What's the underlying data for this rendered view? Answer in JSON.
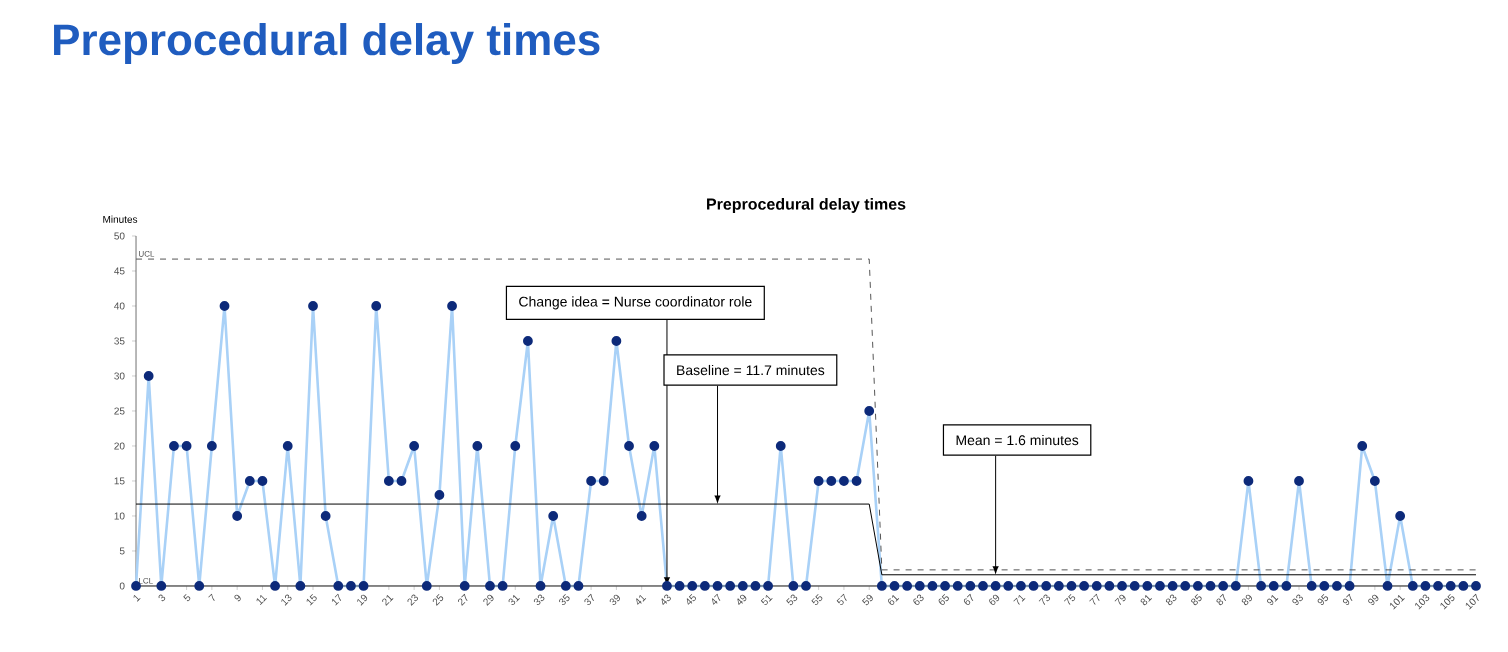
{
  "chart_data": {
    "type": "line",
    "title": "Preprocedural delay times",
    "subtitle": "Preprocedural delay times",
    "ylabel": "Minutes",
    "x": [
      1,
      2,
      3,
      4,
      5,
      6,
      7,
      8,
      9,
      10,
      11,
      12,
      13,
      14,
      15,
      16,
      17,
      18,
      19,
      20,
      21,
      22,
      23,
      24,
      25,
      26,
      27,
      28,
      29,
      30,
      31,
      32,
      33,
      34,
      35,
      36,
      37,
      38,
      39,
      40,
      41,
      42,
      43,
      44,
      45,
      46,
      47,
      48,
      49,
      50,
      51,
      52,
      53,
      54,
      55,
      56,
      57,
      58,
      59,
      60,
      61,
      62,
      63,
      64,
      65,
      66,
      67,
      68,
      69,
      70,
      71,
      72,
      73,
      74,
      75,
      76,
      77,
      78,
      79,
      80,
      81,
      82,
      83,
      84,
      85,
      86,
      87,
      88,
      89,
      90,
      91,
      92,
      93,
      94,
      95,
      96,
      97,
      98,
      99,
      100,
      101,
      102,
      103,
      104,
      105,
      106,
      107
    ],
    "series": [
      {
        "color": "#a9d1f7",
        "marker": "circle",
        "line_style": "solid",
        "values": [
          0,
          30,
          0,
          20,
          20,
          0,
          20,
          40,
          10,
          15,
          15,
          0,
          20,
          0,
          40,
          10,
          0,
          0,
          0,
          40,
          15,
          15,
          20,
          0,
          13,
          40,
          0,
          20,
          0,
          0,
          20,
          35,
          0,
          10,
          0,
          0,
          15,
          15,
          35,
          20,
          10,
          20,
          0,
          0,
          0,
          0,
          0,
          0,
          0,
          0,
          0,
          20,
          0,
          0,
          15,
          15,
          15,
          15,
          25,
          0,
          0,
          0,
          0,
          0,
          0,
          0,
          0,
          0,
          0,
          0,
          0,
          0,
          0,
          0,
          0,
          0,
          0,
          0,
          0,
          0,
          0,
          0,
          0,
          0,
          0,
          0,
          0,
          0,
          15,
          0,
          0,
          0,
          15,
          0,
          0,
          0,
          0,
          20,
          15,
          0,
          10,
          0,
          0,
          0,
          0,
          0,
          0
        ]
      },
      {
        "color": "#000000",
        "marker": "none",
        "line_style": "solid",
        "values": [
          11.7,
          11.7,
          11.7,
          11.7,
          11.7,
          11.7,
          11.7,
          11.7,
          11.7,
          11.7,
          11.7,
          11.7,
          11.7,
          11.7,
          11.7,
          11.7,
          11.7,
          11.7,
          11.7,
          11.7,
          11.7,
          11.7,
          11.7,
          11.7,
          11.7,
          11.7,
          11.7,
          11.7,
          11.7,
          11.7,
          11.7,
          11.7,
          11.7,
          11.7,
          11.7,
          11.7,
          11.7,
          11.7,
          11.7,
          11.7,
          11.7,
          11.7,
          11.7,
          11.7,
          11.7,
          11.7,
          11.7,
          11.7,
          11.7,
          11.7,
          11.7,
          11.7,
          11.7,
          11.7,
          11.7,
          11.7,
          11.7,
          11.7,
          11.7,
          1.6,
          1.6,
          1.6,
          1.6,
          1.6,
          1.6,
          1.6,
          1.6,
          1.6,
          1.6,
          1.6,
          1.6,
          1.6,
          1.6,
          1.6,
          1.6,
          1.6,
          1.6,
          1.6,
          1.6,
          1.6,
          1.6,
          1.6,
          1.6,
          1.6,
          1.6,
          1.6,
          1.6,
          1.6,
          1.6,
          1.6,
          1.6,
          1.6,
          1.6,
          1.6,
          1.6,
          1.6,
          1.6,
          1.6,
          1.6,
          1.6,
          1.6,
          1.6,
          1.6,
          1.6,
          1.6,
          1.6,
          1.6
        ]
      },
      {
        "name": "UCL",
        "color": "#555555",
        "marker": "none",
        "line_style": "dashed",
        "values": [
          46.7,
          46.7,
          46.7,
          46.7,
          46.7,
          46.7,
          46.7,
          46.7,
          46.7,
          46.7,
          46.7,
          46.7,
          46.7,
          46.7,
          46.7,
          46.7,
          46.7,
          46.7,
          46.7,
          46.7,
          46.7,
          46.7,
          46.7,
          46.7,
          46.7,
          46.7,
          46.7,
          46.7,
          46.7,
          46.7,
          46.7,
          46.7,
          46.7,
          46.7,
          46.7,
          46.7,
          46.7,
          46.7,
          46.7,
          46.7,
          46.7,
          46.7,
          46.7,
          46.7,
          46.7,
          46.7,
          46.7,
          46.7,
          46.7,
          46.7,
          46.7,
          46.7,
          46.7,
          46.7,
          46.7,
          46.7,
          46.7,
          46.7,
          46.7,
          2.3,
          2.3,
          2.3,
          2.3,
          2.3,
          2.3,
          2.3,
          2.3,
          2.3,
          2.3,
          2.3,
          2.3,
          2.3,
          2.3,
          2.3,
          2.3,
          2.3,
          2.3,
          2.3,
          2.3,
          2.3,
          2.3,
          2.3,
          2.3,
          2.3,
          2.3,
          2.3,
          2.3,
          2.3,
          2.3,
          2.3,
          2.3,
          2.3,
          2.3,
          2.3,
          2.3,
          2.3,
          2.3,
          2.3,
          2.3,
          2.3,
          2.3,
          2.3,
          2.3,
          2.3,
          2.3,
          2.3,
          2.3
        ]
      },
      {
        "name": "LCL",
        "color": "#555555",
        "marker": "none",
        "line_style": "solid",
        "values": [
          0,
          0,
          0,
          0,
          0,
          0,
          0,
          0,
          0,
          0,
          0,
          0,
          0,
          0,
          0,
          0,
          0,
          0,
          0,
          0,
          0,
          0,
          0,
          0,
          0,
          0,
          0,
          0,
          0,
          0,
          0,
          0,
          0,
          0,
          0,
          0,
          0,
          0,
          0,
          0,
          0,
          0,
          0,
          0,
          0,
          0,
          0,
          0,
          0,
          0,
          0,
          0,
          0,
          0,
          0,
          0,
          0,
          0,
          0,
          0,
          0,
          0,
          0,
          0,
          0,
          0,
          0,
          0,
          0,
          0,
          0,
          0,
          0,
          0,
          0,
          0,
          0,
          0,
          0,
          0,
          0,
          0,
          0,
          0,
          0,
          0,
          0,
          0,
          0,
          0,
          0,
          0,
          0,
          0,
          0,
          0,
          0,
          0,
          0,
          0,
          0,
          0,
          0,
          0,
          0,
          0,
          0
        ]
      }
    ],
    "annotations": [
      {
        "text": "Change idea = Nurse coordinator role",
        "x": 43,
        "y": 0
      },
      {
        "text": "Baseline = 11.7 minutes",
        "x": 47,
        "y": 11.7
      },
      {
        "text": "Mean = 1.6 minutes",
        "x": 69,
        "y": 1.6
      }
    ],
    "xlim": [
      1,
      107
    ],
    "ylim": [
      0,
      50
    ],
    "xticks": [
      1,
      3,
      5,
      7,
      9,
      11,
      13,
      15,
      17,
      19,
      21,
      23,
      25,
      27,
      29,
      31,
      33,
      35,
      37,
      39,
      41,
      43,
      45,
      47,
      49,
      51,
      53,
      55,
      57,
      59,
      61,
      63,
      65,
      67,
      69,
      71,
      73,
      75,
      77,
      79,
      81,
      83,
      85,
      87,
      89,
      91,
      93,
      95,
      97,
      99,
      101,
      103,
      105,
      107
    ],
    "yticks": [
      0,
      5,
      10,
      15,
      20,
      25,
      30,
      35,
      40,
      45,
      50
    ],
    "grid": false
  }
}
